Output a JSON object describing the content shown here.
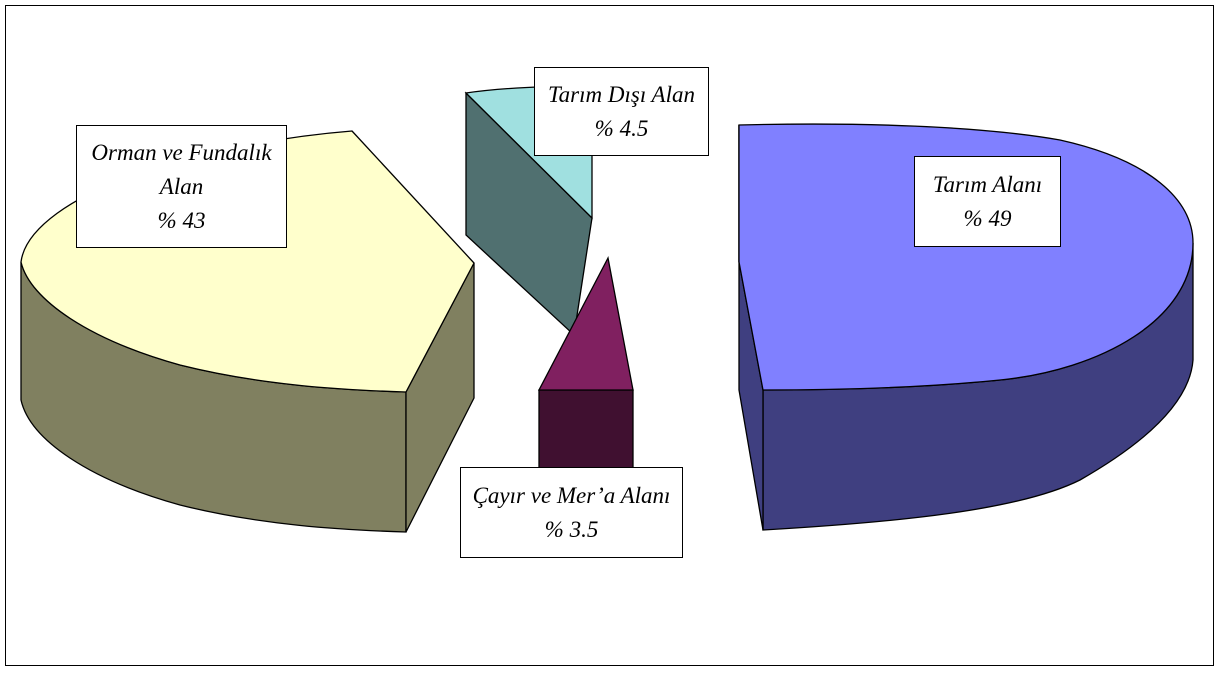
{
  "chart_data": {
    "type": "pie",
    "style": "3d-exploded",
    "slices": [
      {
        "key": "tarim",
        "label": "Tarım Alanı",
        "pct_label": "% 49",
        "value": 49,
        "top_color": "#8080ff",
        "side_color": "#3f3f80"
      },
      {
        "key": "orman",
        "label_line1": "Orman ve Fundalık",
        "label_line2": "Alan",
        "pct_label": "% 43",
        "value": 43,
        "top_color": "#ffffcc",
        "side_color": "#808060"
      },
      {
        "key": "disi",
        "label": "Tarım Dışı Alan",
        "pct_label": "% 4.5",
        "value": 4.5,
        "top_color": "#a0e0e0",
        "side_color": "#507070"
      },
      {
        "key": "cayir",
        "label": "Çayır ve Mer’a Alanı",
        "pct_label": "% 3.5",
        "value": 3.5,
        "top_color": "#802060",
        "side_color": "#401030"
      }
    ]
  }
}
